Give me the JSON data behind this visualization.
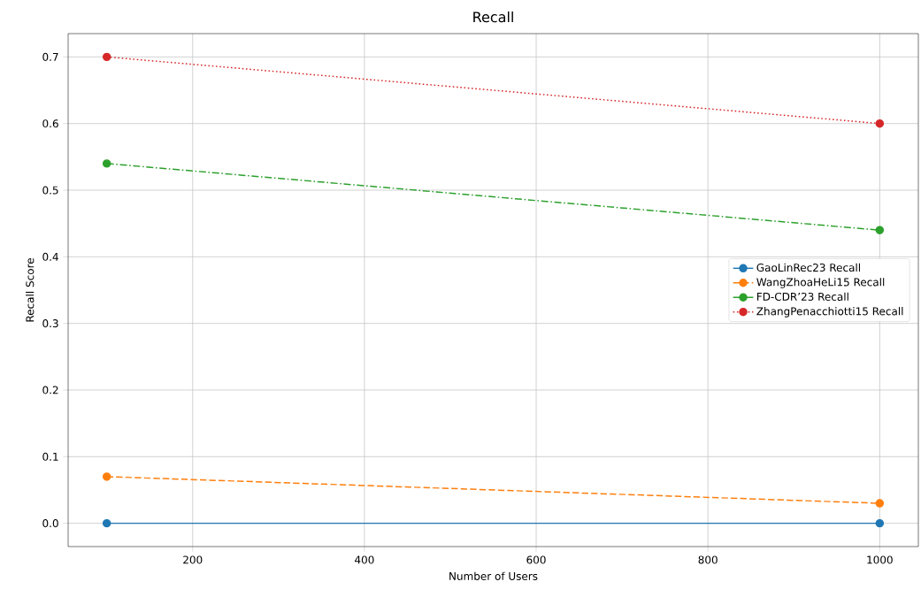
{
  "chart_data": {
    "type": "line",
    "title": "Recall",
    "xlabel": "Number of Users",
    "ylabel": "Recall Score",
    "x": [
      100,
      1000
    ],
    "series": [
      {
        "name": "GaoLinRec23 Recall",
        "color": "#1f77b4",
        "line_style": "solid",
        "values": [
          0.0,
          0.0
        ]
      },
      {
        "name": "WangZhoaHeLi15 Recall",
        "color": "#ff7f0e",
        "line_style": "dashed",
        "values": [
          0.07,
          0.03
        ]
      },
      {
        "name": "FD-CDR’23 Recall",
        "color": "#2ca02c",
        "line_style": "dashdot",
        "values": [
          0.54,
          0.44
        ]
      },
      {
        "name": "ZhangPenacchiotti15 Recall",
        "color": "#d62728",
        "line_style": "dotted",
        "values": [
          0.7,
          0.6
        ]
      }
    ],
    "xlim": [
      55,
      1045
    ],
    "ylim": [
      -0.035,
      0.735
    ],
    "xticks": [
      200,
      400,
      600,
      800,
      1000
    ],
    "yticks": [
      {
        "value": 0.0,
        "label": "0.0"
      },
      {
        "value": 0.1,
        "label": "0.1"
      },
      {
        "value": 0.2,
        "label": "0.2"
      },
      {
        "value": 0.3,
        "label": "0.3"
      },
      {
        "value": 0.4,
        "label": "0.4"
      },
      {
        "value": 0.5,
        "label": "0.5"
      },
      {
        "value": 0.6,
        "label": "0.6"
      },
      {
        "value": 0.7,
        "label": "0.7"
      }
    ],
    "grid": true,
    "legend": "right",
    "marker": "circle"
  }
}
